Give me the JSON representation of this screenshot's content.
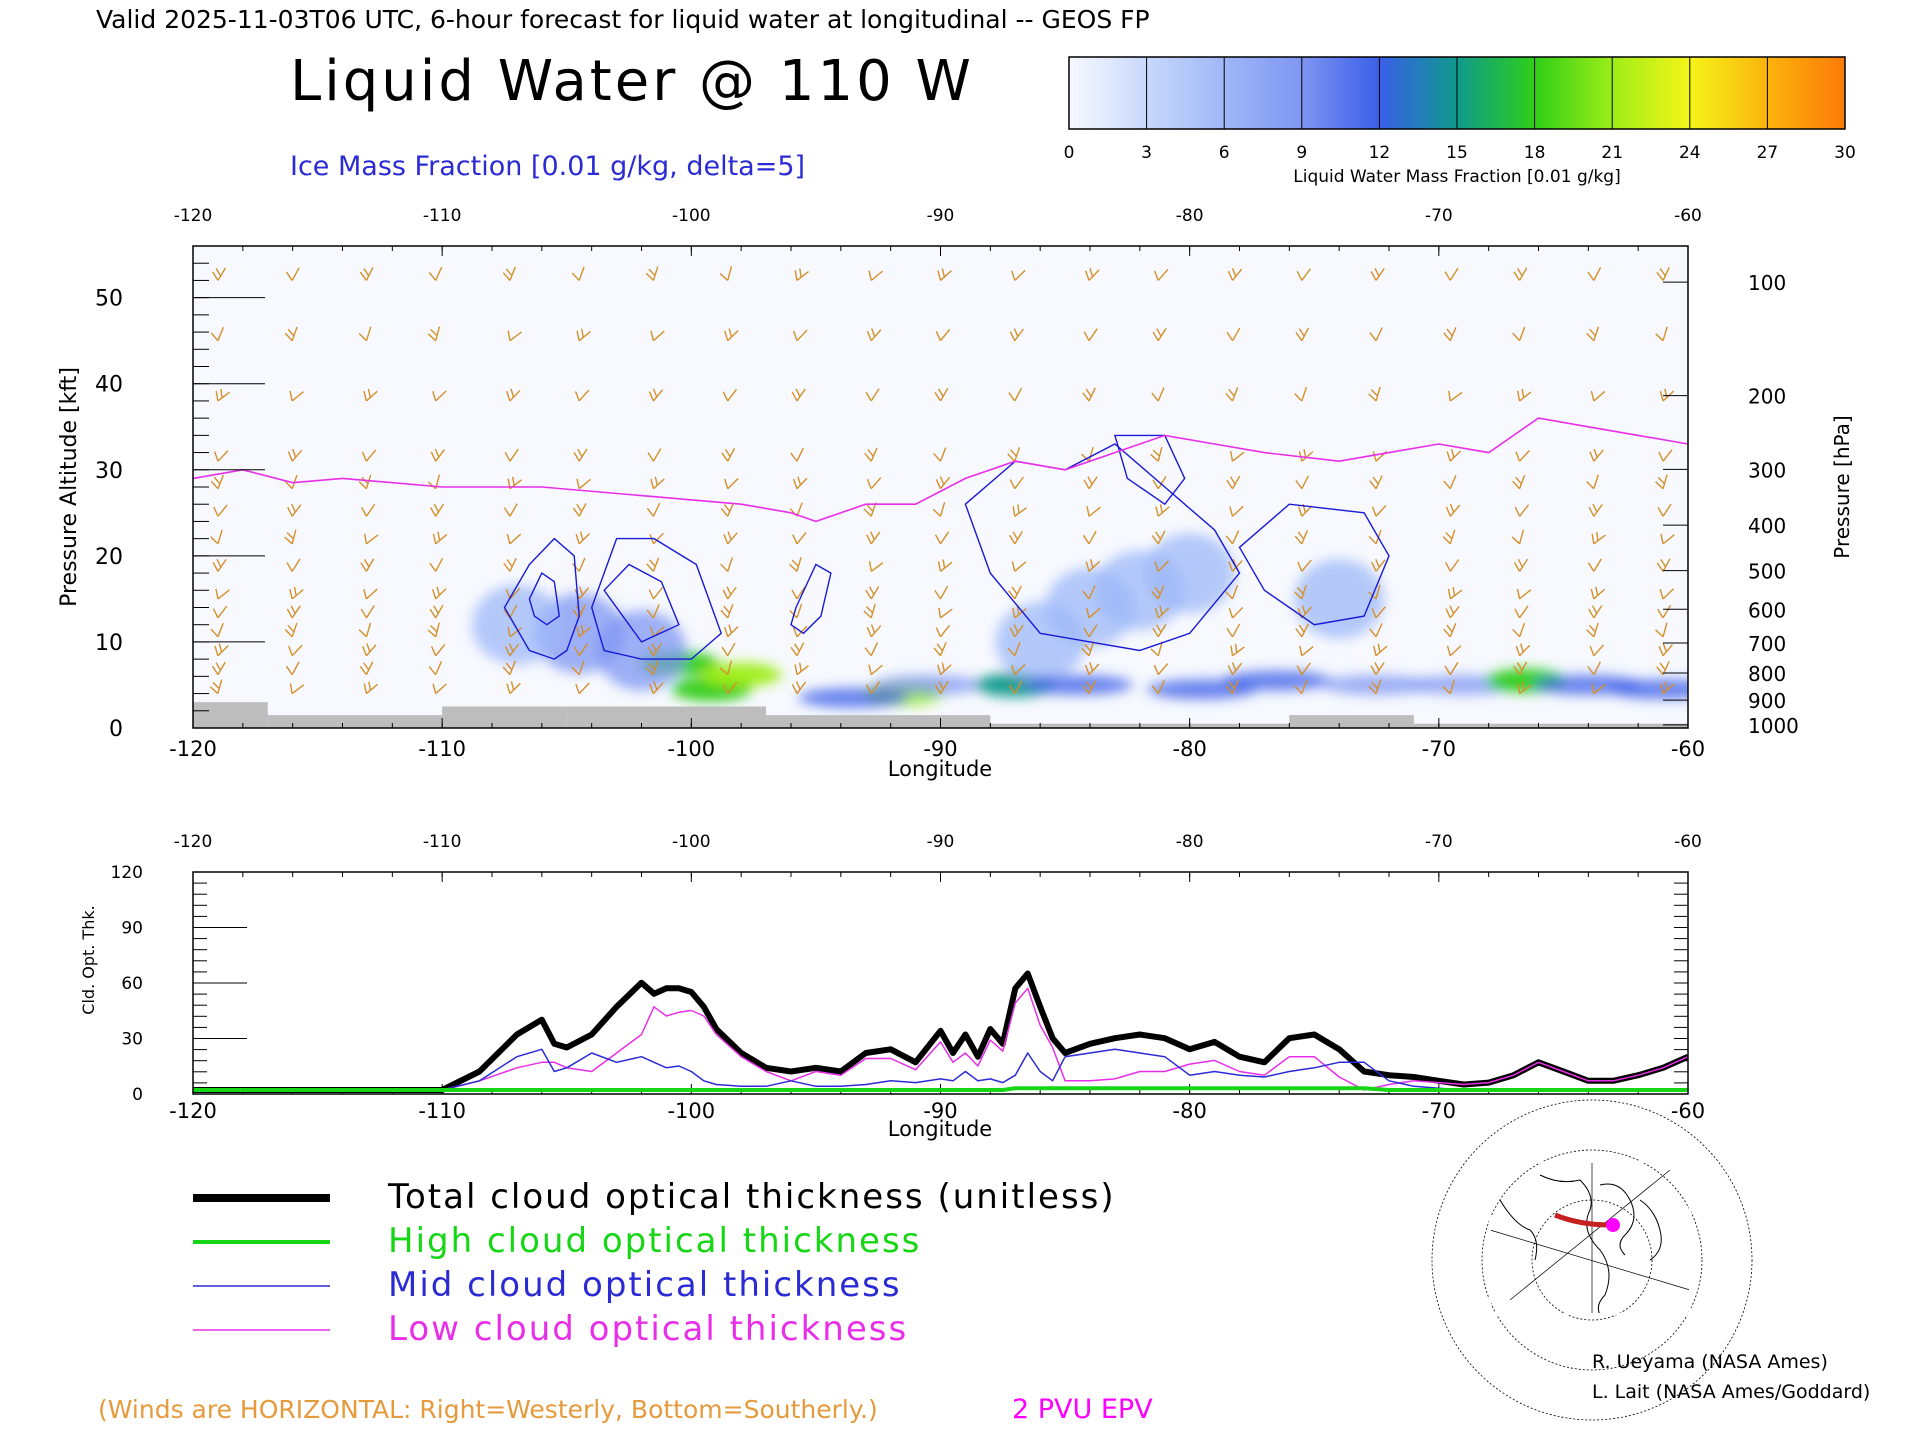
{
  "header": {
    "valid_line": "Valid 2025-11-03T06 UTC, 6-hour forecast for liquid water at longitudinal -- GEOS FP",
    "main_title": "Liquid Water @ 110 W",
    "ice_label": "Ice Mass Fraction [0.01 g/kg, delta=5]"
  },
  "colorbar": {
    "ticks": [
      "0",
      "3",
      "6",
      "9",
      "12",
      "15",
      "18",
      "21",
      "24",
      "27",
      "30"
    ],
    "label": "Liquid Water Mass Fraction [0.01 g/kg]",
    "colors": [
      "#f7f9fe",
      "#c8d8fc",
      "#9eb8f8",
      "#7f95f3",
      "#3a5ee8",
      "#0f9a8c",
      "#2fce18",
      "#9eee18",
      "#f5f418",
      "#fbb30c",
      "#fc7a08"
    ]
  },
  "footer": {
    "winds_note": "(Winds are HORIZONTAL: Right=Westerly, Bottom=Southerly.)",
    "epv_label": "2 PVU EPV",
    "credit_1": "R. Ueyama (NASA Ames)",
    "credit_2": "L. Lait (NASA Ames/Goddard)"
  },
  "legend": [
    {
      "label": "Total cloud optical thickness (unitless)",
      "color": "#000000"
    },
    {
      "label": "High cloud optical thickness",
      "color": "#16d616"
    },
    {
      "label": "Mid cloud optical thickness",
      "color": "#2b2bd6"
    },
    {
      "label": "Low cloud optical thickness",
      "color": "#e82ee8"
    }
  ],
  "chart_data": [
    {
      "type": "heatmap",
      "xlabel": "Longitude",
      "ylabel_left": "Pressure Altitude [kft]",
      "ylabel_right": "Pressure [hPa]",
      "xlim": [
        -120,
        -60
      ],
      "ylim": [
        0,
        56
      ],
      "x_ticks": [
        "-120",
        "-110",
        "-100",
        "-90",
        "-80",
        "-70",
        "-60"
      ],
      "y_ticks_left": [
        "0",
        "10",
        "20",
        "30",
        "40",
        "50"
      ],
      "y_ticks_right": [
        "100",
        "200",
        "300",
        "400",
        "500",
        "600",
        "700",
        "800",
        "900",
        "1000"
      ],
      "liquid_water_blobs": [
        {
          "lon": -100.5,
          "alt": 7.5,
          "value": 16
        },
        {
          "lon": -99.2,
          "alt": 4.5,
          "value": 17
        },
        {
          "lon": -98.0,
          "alt": 6.2,
          "value": 18
        },
        {
          "lon": -102.0,
          "alt": 9.0,
          "value": 8
        },
        {
          "lon": -104.5,
          "alt": 11.0,
          "value": 6
        },
        {
          "lon": -107.0,
          "alt": 12.0,
          "value": 4
        },
        {
          "lon": -91.5,
          "alt": 4.0,
          "value": 20
        },
        {
          "lon": -93.5,
          "alt": 3.5,
          "value": 10
        },
        {
          "lon": -90.5,
          "alt": 5.0,
          "value": 8
        },
        {
          "lon": -87.0,
          "alt": 5.0,
          "value": 14
        },
        {
          "lon": -86.0,
          "alt": 10.0,
          "value": 5
        },
        {
          "lon": -84.0,
          "alt": 14.0,
          "value": 4
        },
        {
          "lon": -82.0,
          "alt": 16.0,
          "value": 3
        },
        {
          "lon": -80.0,
          "alt": 18.0,
          "value": 3
        },
        {
          "lon": -84.5,
          "alt": 5.0,
          "value": 9
        },
        {
          "lon": -79.5,
          "alt": 4.5,
          "value": 9
        },
        {
          "lon": -76.5,
          "alt": 5.5,
          "value": 10
        },
        {
          "lon": -74.0,
          "alt": 15.0,
          "value": 3
        },
        {
          "lon": -72.5,
          "alt": 5.0,
          "value": 7
        },
        {
          "lon": -69.0,
          "alt": 5.0,
          "value": 6
        },
        {
          "lon": -66.5,
          "alt": 5.5,
          "value": 15
        },
        {
          "lon": -64.0,
          "alt": 5.0,
          "value": 9
        },
        {
          "lon": -61.0,
          "alt": 4.5,
          "value": 10
        }
      ],
      "epv_2pvu": {
        "lon": [
          -120,
          -118,
          -116,
          -114,
          -110,
          -106,
          -102,
          -98,
          -96,
          -95,
          -93,
          -91,
          -89,
          -87,
          -85,
          -83,
          -81,
          -79,
          -77,
          -74,
          -72,
          -70,
          -68,
          -66,
          -64,
          -62,
          -60
        ],
        "alt": [
          29,
          30,
          28.5,
          29,
          28,
          28,
          27,
          26,
          25,
          24,
          26,
          26,
          29,
          31,
          30,
          32,
          34,
          33,
          32,
          31,
          32,
          33,
          32,
          36,
          35,
          34,
          33
        ]
      },
      "ice_contours": [
        {
          "lon": [
            -107.5,
            -106.5,
            -105.5,
            -104.7,
            -104.5,
            -105,
            -105.5,
            -106.5,
            -107.5
          ],
          "alt": [
            14,
            19,
            22,
            20,
            13,
            9,
            8,
            9,
            14
          ]
        },
        {
          "lon": [
            -106.5,
            -106,
            -105.5,
            -105.3,
            -105.8,
            -106.3,
            -106.5
          ],
          "alt": [
            15,
            18,
            17,
            13,
            12,
            13,
            15
          ]
        },
        {
          "lon": [
            -104,
            -103,
            -101.5,
            -99.8,
            -98.8,
            -100,
            -102,
            -103.5,
            -104
          ],
          "alt": [
            14,
            22,
            22,
            19,
            11,
            8,
            8,
            9,
            14
          ]
        },
        {
          "lon": [
            -103.5,
            -102.5,
            -101.2,
            -100.5,
            -102,
            -103.5
          ],
          "alt": [
            16,
            19,
            17,
            12,
            10,
            16
          ]
        },
        {
          "lon": [
            -95.8,
            -95,
            -94.4,
            -94.8,
            -95.5,
            -96,
            -95.8
          ],
          "alt": [
            14,
            19,
            18,
            13,
            11,
            12,
            14
          ]
        },
        {
          "lon": [
            -89,
            -87,
            -85,
            -83,
            -81,
            -79,
            -78,
            -80,
            -82,
            -84,
            -86,
            -88,
            -89
          ],
          "alt": [
            26,
            31,
            30,
            33,
            28,
            23,
            18,
            11,
            9,
            10,
            11,
            18,
            26
          ]
        },
        {
          "lon": [
            -78,
            -76,
            -73,
            -72,
            -73,
            -75,
            -77,
            -78
          ],
          "alt": [
            21,
            26,
            25,
            20,
            13,
            12,
            16,
            21
          ]
        },
        {
          "lon": [
            -83,
            -81,
            -80.2,
            -81,
            -82.5,
            -83
          ],
          "alt": [
            34,
            34,
            29,
            26,
            29,
            34
          ]
        }
      ],
      "terrain": [
        {
          "lon": [
            -120,
            -117
          ],
          "alt": 3
        },
        {
          "lon": [
            -117,
            -110
          ],
          "alt": 1.5
        },
        {
          "lon": [
            -110,
            -105
          ],
          "alt": 2.5
        },
        {
          "lon": [
            -105,
            -97
          ],
          "alt": 2.5
        },
        {
          "lon": [
            -97,
            -88
          ],
          "alt": 1.5
        },
        {
          "lon": [
            -88,
            -76
          ],
          "alt": 0.5
        },
        {
          "lon": [
            -76,
            -71
          ],
          "alt": 1.5
        },
        {
          "lon": [
            -71,
            -60
          ],
          "alt": 0.5
        }
      ]
    },
    {
      "type": "line",
      "xlabel": "Longitude",
      "ylabel": "Cld. Opt. Thk.",
      "xlim": [
        -120,
        -60
      ],
      "ylim": [
        0,
        120
      ],
      "x_ticks": [
        "-120",
        "-110",
        "-100",
        "-90",
        "-80",
        "-70",
        "-60"
      ],
      "y_ticks": [
        "0",
        "30",
        "60",
        "90",
        "120"
      ],
      "x": [
        -120,
        -110,
        -108.5,
        -107,
        -106,
        -105.5,
        -105,
        -104,
        -103,
        -102,
        -101.5,
        -101,
        -100.5,
        -100,
        -99.5,
        -99,
        -98,
        -97,
        -96,
        -95,
        -94,
        -93,
        -92,
        -91,
        -90,
        -89.5,
        -89,
        -88.5,
        -88,
        -87.5,
        -87,
        -86.5,
        -86,
        -85.5,
        -85,
        -84,
        -83,
        -82,
        -81,
        -80,
        -79,
        -78,
        -77,
        -76,
        -75,
        -74,
        -73,
        -72,
        -71,
        -70,
        -69,
        -68,
        -67,
        -66,
        -65,
        -64,
        -63,
        -62,
        -61,
        -60
      ],
      "series": [
        {
          "name": "Total cloud optical thickness (unitless)",
          "values": [
            0,
            0,
            10,
            30,
            38,
            25,
            23,
            30,
            45,
            58,
            52,
            55,
            55,
            53,
            45,
            33,
            20,
            12,
            10,
            12,
            10,
            20,
            22,
            15,
            32,
            20,
            30,
            18,
            33,
            25,
            55,
            63,
            45,
            28,
            20,
            25,
            28,
            30,
            28,
            22,
            26,
            18,
            15,
            28,
            30,
            22,
            10,
            8,
            7,
            5,
            3,
            4,
            8,
            15,
            10,
            5,
            5,
            8,
            12,
            18
          ]
        },
        {
          "name": "High cloud optical thickness",
          "values": [
            0,
            0,
            0,
            0,
            0,
            0,
            0,
            0,
            0,
            0,
            0,
            0,
            0,
            0,
            0,
            0,
            0,
            0,
            0,
            0,
            0,
            0,
            0,
            0,
            0,
            0,
            0,
            0,
            0,
            0,
            1,
            1,
            1,
            1,
            1,
            1,
            1,
            1,
            1,
            1,
            1,
            1,
            1,
            1,
            1,
            1,
            1,
            0,
            0,
            0,
            0,
            0,
            0,
            0,
            0,
            0,
            0,
            0,
            0,
            0
          ]
        },
        {
          "name": "Mid cloud optical thickness",
          "values": [
            0,
            0,
            5,
            18,
            22,
            10,
            12,
            20,
            15,
            18,
            15,
            12,
            13,
            10,
            5,
            3,
            2,
            2,
            5,
            2,
            2,
            3,
            5,
            4,
            6,
            5,
            10,
            5,
            6,
            4,
            8,
            20,
            10,
            5,
            18,
            20,
            22,
            20,
            18,
            8,
            10,
            8,
            7,
            10,
            12,
            15,
            15,
            5,
            2,
            1,
            0,
            0,
            0,
            0,
            0,
            0,
            0,
            0,
            0,
            0
          ]
        },
        {
          "name": "Low cloud optical thickness",
          "values": [
            0,
            0,
            5,
            12,
            15,
            15,
            12,
            10,
            20,
            30,
            45,
            40,
            42,
            43,
            40,
            30,
            18,
            10,
            5,
            10,
            8,
            17,
            17,
            11,
            26,
            15,
            20,
            13,
            27,
            21,
            47,
            55,
            35,
            23,
            5,
            5,
            6,
            10,
            10,
            14,
            16,
            10,
            8,
            18,
            18,
            7,
            0,
            3,
            5,
            4,
            3,
            4,
            8,
            15,
            10,
            5,
            5,
            8,
            12,
            18
          ]
        }
      ]
    }
  ]
}
